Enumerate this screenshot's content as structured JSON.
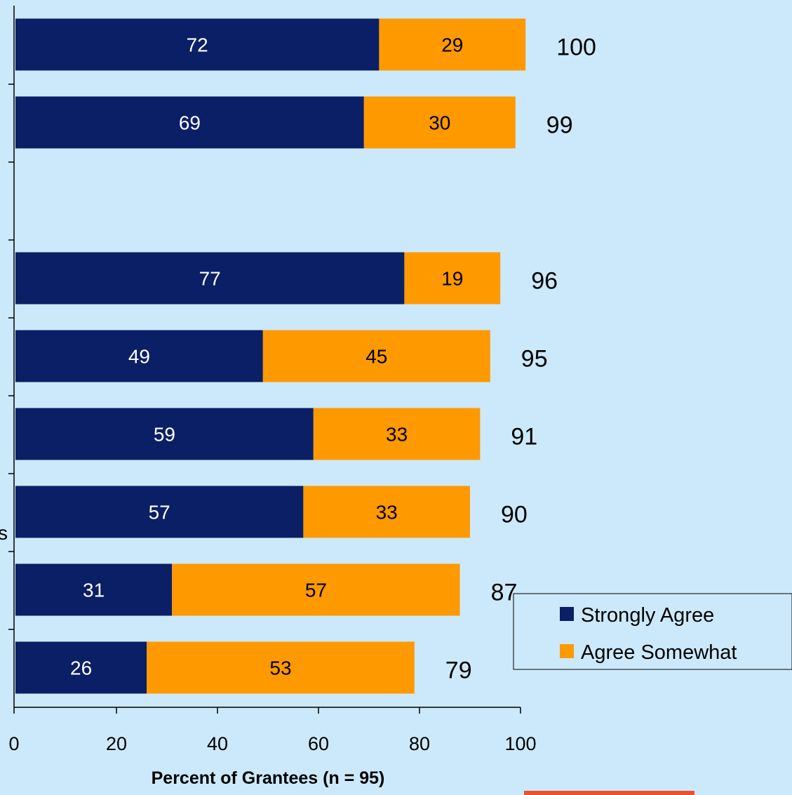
{
  "chart_data": {
    "type": "bar",
    "orientation": "horizontal",
    "stacked": true,
    "series": [
      {
        "name": "Strongly Agree",
        "color": "#0b1f66",
        "values": [
          72,
          69,
          null,
          77,
          49,
          59,
          57,
          31,
          26
        ]
      },
      {
        "name": "Agree Somewhat",
        "color": "#ff9900",
        "values": [
          29,
          30,
          null,
          19,
          45,
          33,
          33,
          57,
          53
        ]
      }
    ],
    "totals": [
      100,
      99,
      null,
      96,
      95,
      91,
      90,
      87,
      79
    ],
    "xlim": [
      0,
      100
    ],
    "xticks": [
      "0",
      "20",
      "40",
      "60",
      "80",
      "100"
    ],
    "xlabel": "Percent of Grantees (n = 95)",
    "legend_position": "bottom-right",
    "grid": false
  },
  "cut_off_label_fragment": "s"
}
